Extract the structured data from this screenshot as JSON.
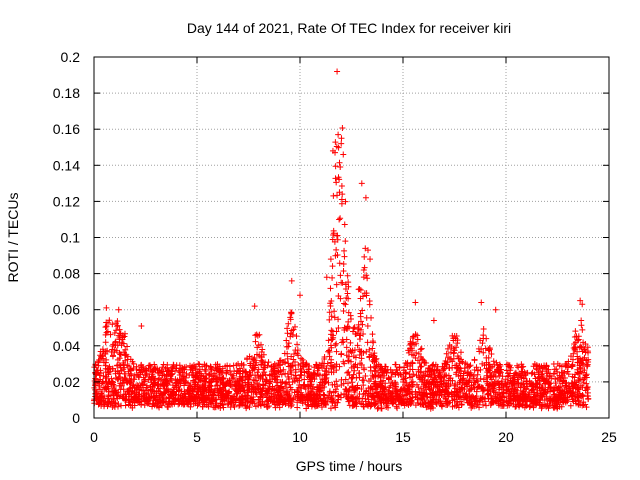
{
  "chart_data": {
    "type": "scatter",
    "title": "Day 144 of 2021, Rate Of TEC Index for receiver kiri",
    "xlabel": "GPS time / hours",
    "ylabel": "ROTI / TECUs",
    "xlim": [
      0,
      25
    ],
    "ylim": [
      0,
      0.2
    ],
    "xticks": [
      0,
      5,
      10,
      15,
      20,
      25
    ],
    "yticks": [
      0,
      0.02,
      0.04,
      0.06,
      0.08,
      0.1,
      0.12,
      0.14,
      0.16,
      0.18,
      0.2
    ],
    "xtick_labels": [
      "0",
      "5",
      "10",
      "15",
      "20",
      "25"
    ],
    "ytick_labels": [
      "0",
      "0.02",
      "0.04",
      "0.06",
      "0.08",
      "0.1",
      "0.12",
      "0.14",
      "0.16",
      "0.18",
      "0.2"
    ],
    "grid": true,
    "marker": "+",
    "color": "#ff0000",
    "series": [
      {
        "name": "ROTI",
        "x_range": [
          0.0,
          24.0
        ],
        "baseline_mean": 0.017,
        "baseline_spread": 0.012,
        "notable_points": [
          {
            "x": 0.6,
            "y": 0.061
          },
          {
            "x": 1.2,
            "y": 0.06
          },
          {
            "x": 2.3,
            "y": 0.051
          },
          {
            "x": 7.8,
            "y": 0.062
          },
          {
            "x": 9.6,
            "y": 0.076
          },
          {
            "x": 10.0,
            "y": 0.068
          },
          {
            "x": 11.3,
            "y": 0.078
          },
          {
            "x": 11.5,
            "y": 0.088
          },
          {
            "x": 11.6,
            "y": 0.148
          },
          {
            "x": 11.7,
            "y": 0.147
          },
          {
            "x": 11.8,
            "y": 0.192
          },
          {
            "x": 11.85,
            "y": 0.157
          },
          {
            "x": 12.0,
            "y": 0.152
          },
          {
            "x": 12.1,
            "y": 0.146
          },
          {
            "x": 12.05,
            "y": 0.124
          },
          {
            "x": 11.9,
            "y": 0.11
          },
          {
            "x": 12.2,
            "y": 0.098
          },
          {
            "x": 13.0,
            "y": 0.13
          },
          {
            "x": 13.2,
            "y": 0.122
          },
          {
            "x": 13.3,
            "y": 0.093
          },
          {
            "x": 13.4,
            "y": 0.088
          },
          {
            "x": 15.6,
            "y": 0.064
          },
          {
            "x": 16.5,
            "y": 0.054
          },
          {
            "x": 18.8,
            "y": 0.064
          },
          {
            "x": 19.5,
            "y": 0.06
          },
          {
            "x": 23.6,
            "y": 0.065
          },
          {
            "x": 23.7,
            "y": 0.063
          }
        ]
      }
    ]
  }
}
